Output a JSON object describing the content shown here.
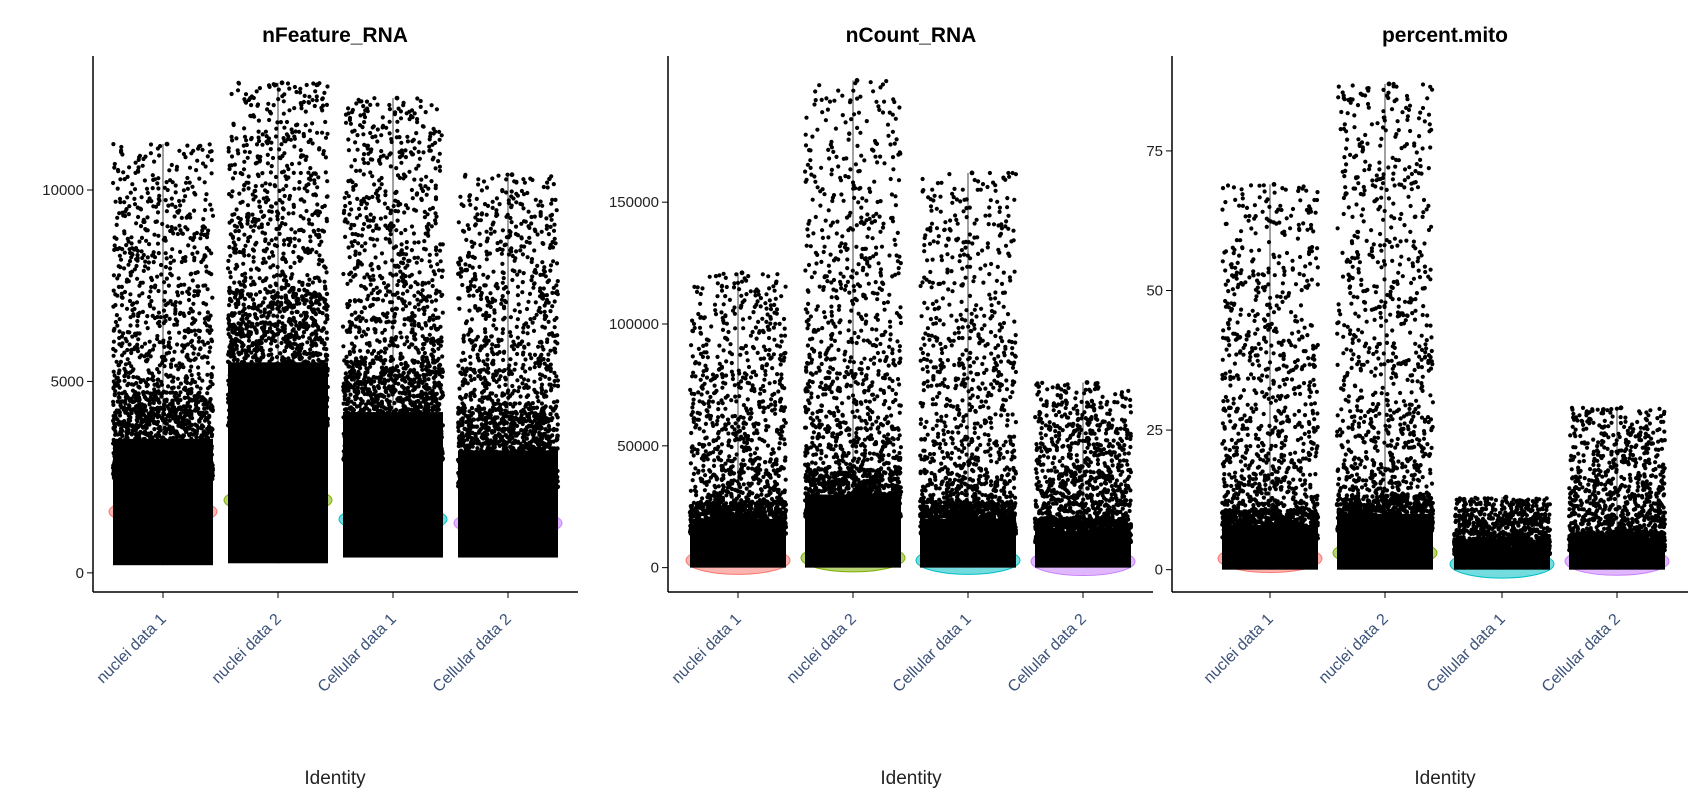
{
  "chart_data": [
    {
      "type": "violin",
      "title": "nFeature_RNA",
      "xlabel": "Identity",
      "ylabel": "",
      "categories": [
        "nuclei data 1",
        "nuclei data 2",
        "Cellular data 1",
        "Cellular data 2"
      ],
      "yticks": [
        0,
        5000,
        10000
      ],
      "ylim": [
        -500,
        13500
      ],
      "grid": false,
      "legend": "none",
      "group_colors": [
        "#F8766D",
        "#7CAE00",
        "#00BFC4",
        "#C77CFF"
      ],
      "series": [
        {
          "name": "nuclei data 1",
          "min": 200,
          "max": 11200,
          "dense_top": 3500,
          "median": 1600
        },
        {
          "name": "nuclei data 2",
          "min": 250,
          "max": 12800,
          "dense_top": 5500,
          "median": 1900
        },
        {
          "name": "Cellular data 1",
          "min": 400,
          "max": 12400,
          "dense_top": 4200,
          "median": 1400
        },
        {
          "name": "Cellular data 2",
          "min": 400,
          "max": 10400,
          "dense_top": 3200,
          "median": 1300
        }
      ]
    },
    {
      "type": "violin",
      "title": "nCount_RNA",
      "xlabel": "Identity",
      "ylabel": "",
      "categories": [
        "nuclei data 1",
        "nuclei data 2",
        "Cellular data 1",
        "Cellular data 2"
      ],
      "yticks": [
        0,
        50000,
        100000,
        150000
      ],
      "ylim": [
        -10000,
        210000
      ],
      "grid": false,
      "legend": "none",
      "group_colors": [
        "#F8766D",
        "#7CAE00",
        "#00BFC4",
        "#C77CFF"
      ],
      "series": [
        {
          "name": "nuclei data 1",
          "min": 0,
          "max": 121000,
          "dense_top": 20000,
          "median": 3000
        },
        {
          "name": "nuclei data 2",
          "min": 0,
          "max": 200000,
          "dense_top": 30000,
          "median": 4000
        },
        {
          "name": "Cellular data 1",
          "min": 0,
          "max": 162000,
          "dense_top": 20000,
          "median": 3000
        },
        {
          "name": "Cellular data 2",
          "min": 0,
          "max": 76000,
          "dense_top": 15000,
          "median": 2500
        }
      ]
    },
    {
      "type": "violin",
      "title": "percent.mito",
      "xlabel": "Identity",
      "ylabel": "",
      "categories": [
        "nuclei data 1",
        "nuclei data 2",
        "Cellular data 1",
        "Cellular data 2"
      ],
      "yticks": [
        0,
        25,
        50,
        75
      ],
      "ylim": [
        -4,
        92
      ],
      "grid": false,
      "legend": "none",
      "group_colors": [
        "#F8766D",
        "#7CAE00",
        "#00BFC4",
        "#C77CFF"
      ],
      "series": [
        {
          "name": "nuclei data 1",
          "min": 0,
          "max": 69,
          "dense_top": 8,
          "median": 2
        },
        {
          "name": "nuclei data 2",
          "min": 0,
          "max": 87,
          "dense_top": 10,
          "median": 3
        },
        {
          "name": "Cellular data 1",
          "min": 0,
          "max": 13,
          "dense_top": 4,
          "median": 1
        },
        {
          "name": "Cellular data 2",
          "min": 0,
          "max": 29,
          "dense_top": 5,
          "median": 1.5
        }
      ]
    }
  ]
}
